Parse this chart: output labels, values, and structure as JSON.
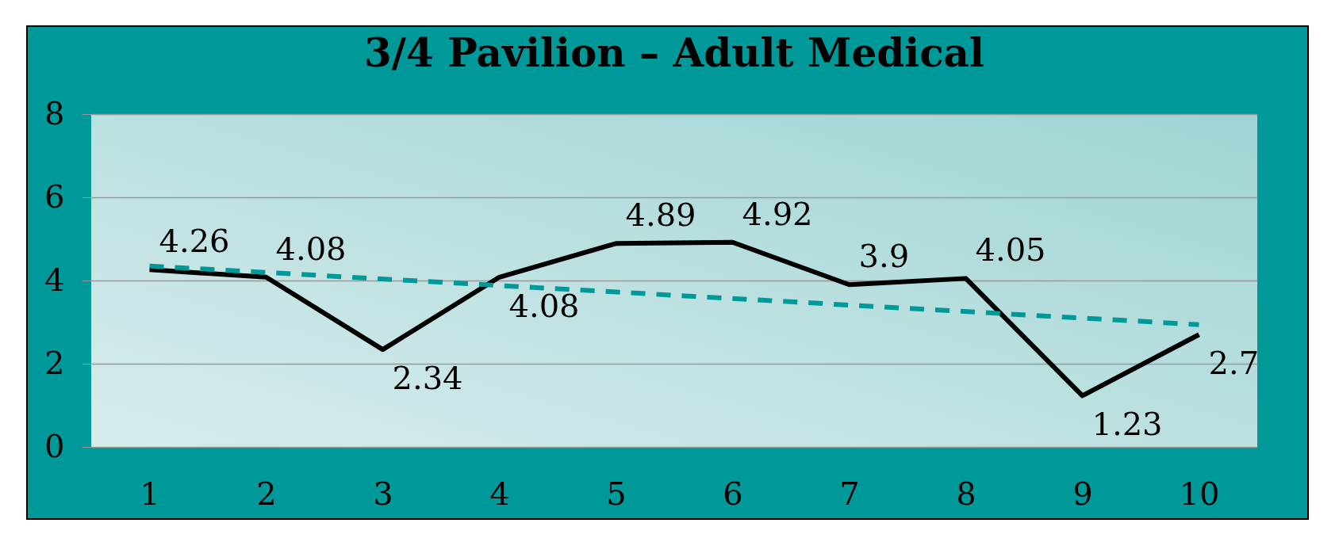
{
  "chart_data": {
    "type": "line",
    "title": "3/4 Pavilion – Adult Medical",
    "categories": [
      "1",
      "2",
      "3",
      "4",
      "5",
      "6",
      "7",
      "8",
      "9",
      "10"
    ],
    "series": [
      {
        "color": "#000000",
        "values": [
          4.26,
          4.08,
          2.34,
          4.08,
          4.89,
          4.92,
          3.9,
          4.05,
          1.23,
          2.7
        ],
        "line_style": "solid",
        "value_labels": [
          "4.26",
          "4.08",
          "2.34",
          "4.08",
          "4.89",
          "4.92",
          "3.9",
          "4.05",
          "1.23",
          "2.7"
        ]
      },
      {
        "type": "line",
        "x": [
          "1",
          "10"
        ],
        "values": [
          4.35,
          2.94
        ],
        "color": "#009999",
        "line_style": "dashed"
      }
    ],
    "ylim": [
      0,
      8
    ],
    "yticks": [
      0,
      2,
      4,
      6,
      8
    ],
    "grid": "y"
  }
}
